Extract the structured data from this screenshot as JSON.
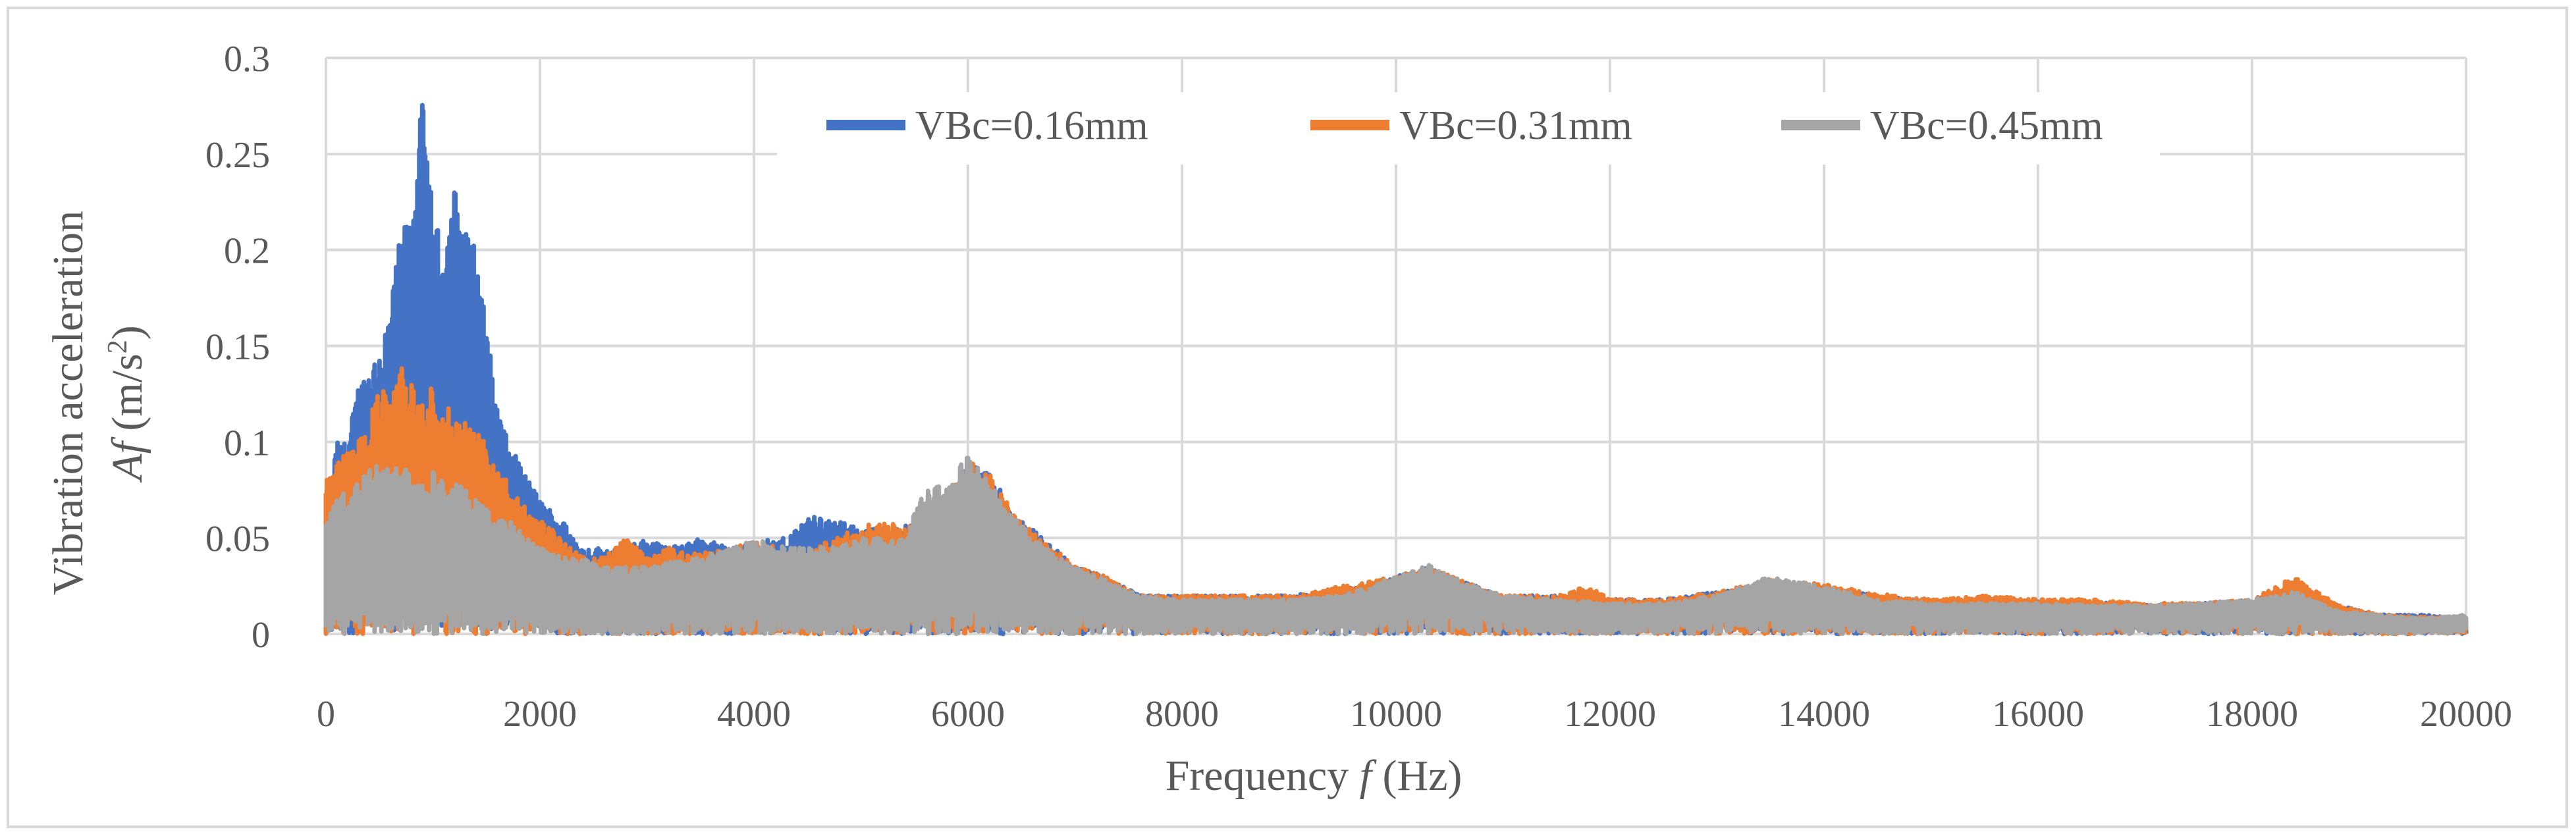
{
  "chart_data": {
    "type": "line",
    "title": "",
    "xlabel_prefix": "Frequency ",
    "xlabel_symbol": "f",
    "xlabel_suffix": " (Hz)",
    "ylabel_line1": "Vibration acceleration",
    "ylabel_symbol": "Af",
    "ylabel_unit": " (m/s",
    "ylabel_sup": "2",
    "ylabel_close": ")",
    "xlim": [
      0,
      20000
    ],
    "ylim": [
      0,
      0.3
    ],
    "x_ticks": [
      "0",
      "2000",
      "4000",
      "6000",
      "8000",
      "10000",
      "12000",
      "14000",
      "16000",
      "18000",
      "20000"
    ],
    "y_ticks": [
      "0",
      "0.05",
      "0.1",
      "0.15",
      "0.2",
      "0.25",
      "0.3"
    ],
    "grid": true,
    "legend_position": "top-center",
    "series": [
      {
        "name": "VBc=0.16mm",
        "color": "#4472C4",
        "envelope": [
          [
            0,
            0.06
          ],
          [
            100,
            0.1
          ],
          [
            200,
            0.1
          ],
          [
            300,
            0.13
          ],
          [
            400,
            0.14
          ],
          [
            500,
            0.15
          ],
          [
            600,
            0.17
          ],
          [
            700,
            0.21
          ],
          [
            800,
            0.22
          ],
          [
            900,
            0.279
          ],
          [
            1000,
            0.22
          ],
          [
            1100,
            0.2
          ],
          [
            1200,
            0.234
          ],
          [
            1300,
            0.21
          ],
          [
            1400,
            0.205
          ],
          [
            1500,
            0.16
          ],
          [
            1600,
            0.12
          ],
          [
            1700,
            0.1
          ],
          [
            1800,
            0.09
          ],
          [
            1900,
            0.08
          ],
          [
            2000,
            0.07
          ],
          [
            2200,
            0.06
          ],
          [
            2400,
            0.045
          ],
          [
            2600,
            0.045
          ],
          [
            2800,
            0.045
          ],
          [
            3000,
            0.05
          ],
          [
            3200,
            0.045
          ],
          [
            3500,
            0.05
          ],
          [
            3800,
            0.045
          ],
          [
            4000,
            0.048
          ],
          [
            4300,
            0.05
          ],
          [
            4500,
            0.062
          ],
          [
            4700,
            0.06
          ],
          [
            5000,
            0.055
          ],
          [
            5300,
            0.055
          ],
          [
            5600,
            0.06
          ],
          [
            5800,
            0.07
          ],
          [
            6000,
            0.09
          ],
          [
            6200,
            0.085
          ],
          [
            6400,
            0.065
          ],
          [
            6600,
            0.055
          ],
          [
            6800,
            0.045
          ],
          [
            7000,
            0.035
          ],
          [
            7300,
            0.03
          ],
          [
            7600,
            0.02
          ],
          [
            8000,
            0.02
          ],
          [
            8500,
            0.02
          ],
          [
            9000,
            0.02
          ],
          [
            9500,
            0.023
          ],
          [
            10000,
            0.03
          ],
          [
            10300,
            0.035
          ],
          [
            10600,
            0.028
          ],
          [
            11000,
            0.02
          ],
          [
            11500,
            0.02
          ],
          [
            12000,
            0.018
          ],
          [
            12500,
            0.018
          ],
          [
            13000,
            0.022
          ],
          [
            13500,
            0.025
          ],
          [
            14000,
            0.024
          ],
          [
            14500,
            0.02
          ],
          [
            15000,
            0.017
          ],
          [
            15500,
            0.018
          ],
          [
            16000,
            0.017
          ],
          [
            16500,
            0.017
          ],
          [
            17000,
            0.015
          ],
          [
            17500,
            0.016
          ],
          [
            18000,
            0.018
          ],
          [
            18400,
            0.024
          ],
          [
            18800,
            0.015
          ],
          [
            19200,
            0.01
          ],
          [
            19600,
            0.01
          ],
          [
            20000,
            0.008
          ]
        ]
      },
      {
        "name": "VBc=0.31mm",
        "color": "#ED7D31",
        "envelope": [
          [
            0,
            0.08
          ],
          [
            100,
            0.09
          ],
          [
            200,
            0.095
          ],
          [
            300,
            0.1
          ],
          [
            400,
            0.11
          ],
          [
            500,
            0.13
          ],
          [
            600,
            0.12
          ],
          [
            700,
            0.14
          ],
          [
            800,
            0.13
          ],
          [
            900,
            0.12
          ],
          [
            1000,
            0.13
          ],
          [
            1100,
            0.12
          ],
          [
            1200,
            0.115
          ],
          [
            1300,
            0.11
          ],
          [
            1400,
            0.105
          ],
          [
            1500,
            0.1
          ],
          [
            1600,
            0.085
          ],
          [
            1700,
            0.08
          ],
          [
            1800,
            0.07
          ],
          [
            1900,
            0.065
          ],
          [
            2000,
            0.06
          ],
          [
            2200,
            0.05
          ],
          [
            2400,
            0.04
          ],
          [
            2600,
            0.04
          ],
          [
            2800,
            0.05
          ],
          [
            3000,
            0.04
          ],
          [
            3200,
            0.045
          ],
          [
            3500,
            0.042
          ],
          [
            3800,
            0.045
          ],
          [
            4000,
            0.048
          ],
          [
            4300,
            0.045
          ],
          [
            4500,
            0.04
          ],
          [
            4700,
            0.05
          ],
          [
            5000,
            0.055
          ],
          [
            5200,
            0.06
          ],
          [
            5400,
            0.055
          ],
          [
            5600,
            0.06
          ],
          [
            5800,
            0.07
          ],
          [
            6000,
            0.09
          ],
          [
            6200,
            0.085
          ],
          [
            6400,
            0.065
          ],
          [
            6600,
            0.055
          ],
          [
            6800,
            0.045
          ],
          [
            7000,
            0.035
          ],
          [
            7300,
            0.03
          ],
          [
            7600,
            0.02
          ],
          [
            8000,
            0.02
          ],
          [
            8500,
            0.02
          ],
          [
            9000,
            0.02
          ],
          [
            9500,
            0.025
          ],
          [
            10000,
            0.03
          ],
          [
            10300,
            0.035
          ],
          [
            10600,
            0.028
          ],
          [
            11000,
            0.02
          ],
          [
            11500,
            0.02
          ],
          [
            11800,
            0.025
          ],
          [
            12000,
            0.018
          ],
          [
            12500,
            0.018
          ],
          [
            13000,
            0.022
          ],
          [
            13500,
            0.028
          ],
          [
            14000,
            0.026
          ],
          [
            14500,
            0.021
          ],
          [
            15000,
            0.018
          ],
          [
            15500,
            0.02
          ],
          [
            16000,
            0.018
          ],
          [
            16500,
            0.018
          ],
          [
            17000,
            0.016
          ],
          [
            17500,
            0.016
          ],
          [
            18000,
            0.018
          ],
          [
            18400,
            0.03
          ],
          [
            18800,
            0.015
          ],
          [
            19200,
            0.01
          ],
          [
            19600,
            0.009
          ],
          [
            20000,
            0.008
          ]
        ]
      },
      {
        "name": "VBc=0.45mm",
        "color": "#A5A5A5",
        "envelope": [
          [
            0,
            0.06
          ],
          [
            100,
            0.07
          ],
          [
            200,
            0.075
          ],
          [
            300,
            0.08
          ],
          [
            400,
            0.085
          ],
          [
            500,
            0.09
          ],
          [
            600,
            0.085
          ],
          [
            700,
            0.09
          ],
          [
            800,
            0.085
          ],
          [
            900,
            0.08
          ],
          [
            1000,
            0.085
          ],
          [
            1100,
            0.08
          ],
          [
            1200,
            0.08
          ],
          [
            1300,
            0.075
          ],
          [
            1400,
            0.07
          ],
          [
            1500,
            0.065
          ],
          [
            1600,
            0.06
          ],
          [
            1700,
            0.06
          ],
          [
            1800,
            0.055
          ],
          [
            1900,
            0.05
          ],
          [
            2000,
            0.045
          ],
          [
            2200,
            0.04
          ],
          [
            2400,
            0.04
          ],
          [
            2600,
            0.035
          ],
          [
            2800,
            0.035
          ],
          [
            3000,
            0.035
          ],
          [
            3200,
            0.038
          ],
          [
            3500,
            0.04
          ],
          [
            3800,
            0.045
          ],
          [
            4000,
            0.05
          ],
          [
            4300,
            0.045
          ],
          [
            4500,
            0.045
          ],
          [
            4700,
            0.045
          ],
          [
            5000,
            0.05
          ],
          [
            5200,
            0.05
          ],
          [
            5400,
            0.05
          ],
          [
            5600,
            0.075
          ],
          [
            5800,
            0.078
          ],
          [
            6000,
            0.093
          ],
          [
            6100,
            0.09
          ],
          [
            6200,
            0.08
          ],
          [
            6400,
            0.065
          ],
          [
            6600,
            0.05
          ],
          [
            6800,
            0.042
          ],
          [
            7000,
            0.035
          ],
          [
            7300,
            0.028
          ],
          [
            7600,
            0.02
          ],
          [
            8000,
            0.018
          ],
          [
            8500,
            0.018
          ],
          [
            9000,
            0.018
          ],
          [
            9500,
            0.02
          ],
          [
            10000,
            0.03
          ],
          [
            10300,
            0.036
          ],
          [
            10600,
            0.028
          ],
          [
            11000,
            0.02
          ],
          [
            11500,
            0.018
          ],
          [
            12000,
            0.016
          ],
          [
            12500,
            0.016
          ],
          [
            13000,
            0.02
          ],
          [
            13500,
            0.03
          ],
          [
            14000,
            0.025
          ],
          [
            14500,
            0.018
          ],
          [
            15000,
            0.016
          ],
          [
            15500,
            0.016
          ],
          [
            16000,
            0.016
          ],
          [
            16500,
            0.015
          ],
          [
            17000,
            0.015
          ],
          [
            17500,
            0.016
          ],
          [
            18000,
            0.018
          ],
          [
            18400,
            0.022
          ],
          [
            18800,
            0.012
          ],
          [
            19200,
            0.01
          ],
          [
            19600,
            0.008
          ],
          [
            20000,
            0.01
          ]
        ]
      }
    ]
  }
}
